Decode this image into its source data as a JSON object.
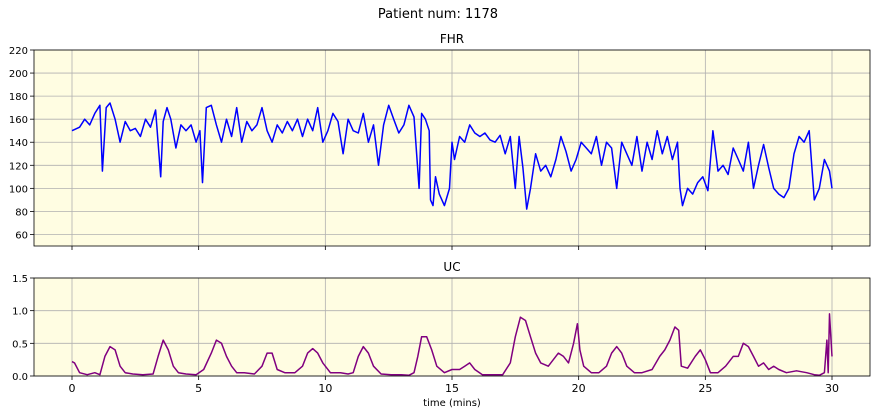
{
  "figure": {
    "suptitle": "Patient num: 1178"
  },
  "colors": {
    "plot_bg": "#fffde2",
    "fhr_line": "#0000ff",
    "uc_line": "#800080",
    "grid": "#b0b0b0"
  },
  "chart_data": [
    {
      "type": "line",
      "title": "FHR",
      "xlabel": "",
      "ylabel": "",
      "xlim": [
        -1.5,
        31.5
      ],
      "ylim": [
        50,
        220
      ],
      "xticks": [
        0,
        5,
        10,
        15,
        20,
        25,
        30
      ],
      "xtick_labels_visible": false,
      "yticks": [
        60,
        80,
        100,
        120,
        140,
        160,
        180,
        200,
        220
      ],
      "grid": true,
      "series": [
        {
          "color": "#0000ff",
          "x": [
            0,
            0.3,
            0.5,
            0.7,
            0.9,
            1.1,
            1.2,
            1.35,
            1.5,
            1.7,
            1.9,
            2.1,
            2.3,
            2.5,
            2.7,
            2.9,
            3.1,
            3.3,
            3.5,
            3.6,
            3.75,
            3.9,
            4.1,
            4.3,
            4.5,
            4.7,
            4.9,
            5.05,
            5.15,
            5.3,
            5.5,
            5.7,
            5.9,
            6.1,
            6.3,
            6.5,
            6.7,
            6.9,
            7.1,
            7.3,
            7.5,
            7.7,
            7.9,
            8.1,
            8.3,
            8.5,
            8.7,
            8.9,
            9.1,
            9.3,
            9.5,
            9.7,
            9.9,
            10.1,
            10.3,
            10.5,
            10.7,
            10.9,
            11.1,
            11.3,
            11.5,
            11.7,
            11.9,
            12.1,
            12.3,
            12.5,
            12.7,
            12.9,
            13.1,
            13.3,
            13.5,
            13.7,
            13.8,
            13.95,
            14.1,
            14.15,
            14.25,
            14.35,
            14.5,
            14.7,
            14.9,
            15.0,
            15.1,
            15.3,
            15.5,
            15.7,
            15.9,
            16.1,
            16.3,
            16.5,
            16.7,
            16.9,
            17.1,
            17.3,
            17.5,
            17.65,
            17.8,
            17.95,
            18.1,
            18.3,
            18.5,
            18.7,
            18.9,
            19.1,
            19.3,
            19.5,
            19.7,
            19.9,
            20.1,
            20.3,
            20.5,
            20.7,
            20.9,
            21.1,
            21.3,
            21.5,
            21.7,
            21.9,
            22.1,
            22.3,
            22.5,
            22.7,
            22.9,
            23.1,
            23.3,
            23.5,
            23.7,
            23.9,
            24.0,
            24.1,
            24.3,
            24.5,
            24.7,
            24.9,
            25.1,
            25.3,
            25.5,
            25.7,
            25.9,
            26.1,
            26.3,
            26.5,
            26.7,
            26.9,
            27.1,
            27.3,
            27.5,
            27.7,
            27.9,
            28.1,
            28.3,
            28.5,
            28.7,
            28.9,
            29.1,
            29.3,
            29.5,
            29.7,
            29.9,
            30.0
          ],
          "y": [
            150,
            153,
            160,
            155,
            165,
            172,
            115,
            170,
            174,
            160,
            140,
            158,
            150,
            152,
            145,
            160,
            153,
            168,
            110,
            158,
            170,
            160,
            135,
            155,
            150,
            155,
            140,
            150,
            105,
            170,
            172,
            155,
            140,
            160,
            145,
            170,
            140,
            158,
            150,
            155,
            170,
            150,
            140,
            155,
            148,
            158,
            150,
            160,
            145,
            160,
            150,
            170,
            140,
            150,
            165,
            158,
            130,
            160,
            150,
            148,
            165,
            140,
            155,
            120,
            155,
            172,
            160,
            148,
            155,
            172,
            162,
            100,
            165,
            160,
            150,
            90,
            85,
            110,
            95,
            85,
            100,
            140,
            125,
            145,
            140,
            155,
            148,
            145,
            148,
            142,
            140,
            146,
            130,
            145,
            100,
            145,
            118,
            82,
            100,
            130,
            115,
            120,
            110,
            125,
            145,
            132,
            115,
            125,
            140,
            135,
            130,
            145,
            120,
            140,
            135,
            100,
            140,
            130,
            120,
            145,
            115,
            140,
            125,
            150,
            130,
            145,
            125,
            140,
            100,
            85,
            100,
            95,
            105,
            110,
            98,
            150,
            115,
            120,
            112,
            135,
            125,
            115,
            140,
            100,
            120,
            138,
            118,
            100,
            95,
            92,
            100,
            130,
            145,
            140,
            150,
            90,
            100,
            125,
            115,
            100
          ]
        }
      ]
    },
    {
      "type": "line",
      "title": "UC",
      "xlabel": "time (mins)",
      "ylabel": "",
      "xlim": [
        -1.5,
        31.5
      ],
      "ylim": [
        0,
        1.5
      ],
      "xticks": [
        0,
        5,
        10,
        15,
        20,
        25,
        30
      ],
      "yticks": [
        0.0,
        0.5,
        1.0,
        1.5
      ],
      "ytick_labels": [
        "0.0",
        "0.5",
        "1.0",
        "1.5"
      ],
      "grid": true,
      "series": [
        {
          "color": "#800080",
          "x": [
            0,
            0.1,
            0.3,
            0.6,
            0.9,
            1.1,
            1.3,
            1.5,
            1.7,
            1.9,
            2.1,
            2.4,
            2.8,
            3.2,
            3.4,
            3.6,
            3.8,
            4.0,
            4.2,
            4.5,
            4.9,
            5.2,
            5.5,
            5.7,
            5.9,
            6.1,
            6.3,
            6.5,
            6.8,
            7.2,
            7.5,
            7.7,
            7.9,
            8.1,
            8.4,
            8.8,
            9.1,
            9.3,
            9.5,
            9.7,
            9.9,
            10.2,
            10.6,
            10.9,
            11.1,
            11.3,
            11.5,
            11.7,
            11.9,
            12.2,
            12.6,
            13.0,
            13.3,
            13.5,
            13.65,
            13.8,
            14.0,
            14.2,
            14.4,
            14.7,
            15.0,
            15.3,
            15.5,
            15.7,
            15.9,
            16.2,
            16.6,
            17.0,
            17.3,
            17.5,
            17.7,
            17.9,
            18.1,
            18.3,
            18.5,
            18.8,
            19.0,
            19.2,
            19.4,
            19.6,
            19.8,
            19.95,
            20.05,
            20.2,
            20.5,
            20.8,
            21.1,
            21.3,
            21.5,
            21.7,
            21.9,
            22.2,
            22.5,
            22.9,
            23.2,
            23.4,
            23.6,
            23.8,
            23.95,
            24.05,
            24.3,
            24.6,
            24.8,
            25.0,
            25.2,
            25.5,
            25.8,
            26.1,
            26.3,
            26.5,
            26.7,
            26.9,
            27.1,
            27.3,
            27.5,
            27.7,
            27.9,
            28.2,
            28.6,
            29.0,
            29.3,
            29.5,
            29.7,
            29.8,
            29.85,
            29.9,
            30.0
          ],
          "y": [
            0.22,
            0.2,
            0.05,
            0.02,
            0.05,
            0.02,
            0.3,
            0.45,
            0.4,
            0.15,
            0.05,
            0.03,
            0.02,
            0.03,
            0.3,
            0.55,
            0.4,
            0.15,
            0.05,
            0.03,
            0.02,
            0.1,
            0.35,
            0.55,
            0.5,
            0.3,
            0.15,
            0.05,
            0.05,
            0.03,
            0.15,
            0.35,
            0.35,
            0.1,
            0.05,
            0.05,
            0.15,
            0.35,
            0.42,
            0.35,
            0.2,
            0.05,
            0.05,
            0.03,
            0.05,
            0.3,
            0.45,
            0.35,
            0.15,
            0.03,
            0.02,
            0.02,
            0.01,
            0.05,
            0.3,
            0.6,
            0.6,
            0.4,
            0.15,
            0.05,
            0.1,
            0.1,
            0.15,
            0.2,
            0.1,
            0.02,
            0.02,
            0.02,
            0.2,
            0.6,
            0.9,
            0.85,
            0.6,
            0.35,
            0.2,
            0.15,
            0.25,
            0.35,
            0.3,
            0.2,
            0.5,
            0.8,
            0.4,
            0.15,
            0.05,
            0.05,
            0.15,
            0.35,
            0.45,
            0.35,
            0.15,
            0.05,
            0.05,
            0.1,
            0.3,
            0.4,
            0.55,
            0.75,
            0.7,
            0.15,
            0.12,
            0.3,
            0.4,
            0.25,
            0.05,
            0.05,
            0.15,
            0.3,
            0.3,
            0.5,
            0.45,
            0.3,
            0.15,
            0.2,
            0.1,
            0.15,
            0.1,
            0.05,
            0.08,
            0.05,
            0.02,
            0.01,
            0.05,
            0.55,
            0.05,
            0.95,
            0.3
          ]
        }
      ]
    }
  ]
}
